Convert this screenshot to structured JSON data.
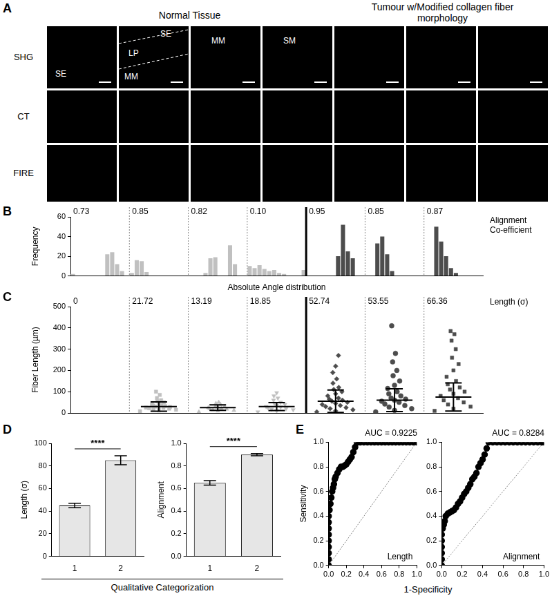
{
  "figure": {
    "panel_a": {
      "panel": "A",
      "headers": [
        "Normal Tissue",
        "Tumour w/Modified collagen fiber morphology"
      ],
      "rows": [
        "SHG",
        "CT",
        "FIRE"
      ],
      "shg_labels": [
        [
          "SE"
        ],
        [
          "SE",
          "LP",
          "MM"
        ],
        [
          "MM"
        ],
        [
          "SM"
        ],
        [],
        [],
        []
      ]
    },
    "panel_d_xlabel": "Qualitative Categorization",
    "panel_e_xlabel": "1-Specificity"
  },
  "chart_data": [
    {
      "panel": "B",
      "type": "bar",
      "ylabel": "Frequency",
      "xlabel": "Absolute Angle distribution",
      "annotation": "Alignment Co-efficient",
      "ylim": [
        0,
        60
      ],
      "yticks": [
        0,
        20,
        40,
        60
      ],
      "tick_labels": "y",
      "grid": false,
      "groups": [
        {
          "label": "0.73",
          "values": [
            2,
            0,
            0,
            0,
            0,
            0,
            0,
            22,
            24,
            12,
            5,
            0
          ],
          "color": "#c0c0c0"
        },
        {
          "label": "0.85",
          "values": [
            3,
            16,
            15,
            4,
            0,
            0,
            0,
            0,
            0,
            0,
            0,
            0
          ],
          "color": "#c0c0c0"
        },
        {
          "label": "0.82",
          "values": [
            0,
            0,
            0,
            3,
            18,
            19,
            0,
            0,
            31,
            12,
            0,
            0
          ],
          "color": "#c0c0c0"
        },
        {
          "label": "0.10",
          "values": [
            10,
            8,
            11,
            7,
            5,
            6,
            3,
            2,
            0,
            0,
            0,
            6
          ],
          "color": "#c0c0c0"
        },
        {
          "label": "0.95",
          "values": [
            0,
            0,
            0,
            0,
            0,
            0,
            20,
            52,
            25,
            18,
            0,
            0
          ],
          "color": "#4d4d4d"
        },
        {
          "label": "0.85",
          "values": [
            0,
            0,
            33,
            40,
            22,
            5,
            0,
            0,
            0,
            0,
            0,
            0
          ],
          "color": "#4d4d4d"
        },
        {
          "label": "0.87",
          "values": [
            0,
            0,
            50,
            35,
            20,
            8,
            3,
            0,
            0,
            0,
            0,
            0
          ],
          "color": "#4d4d4d"
        }
      ]
    },
    {
      "panel": "C",
      "type": "scatter",
      "ylabel": "Fiber Length (µm)",
      "annotation": "Length (σ)",
      "xlim": [
        0.5,
        7.5
      ],
      "ylim": [
        0,
        500
      ],
      "yticks": [
        0,
        100,
        200,
        300,
        400,
        500
      ],
      "tick_labels": "y",
      "grid": false,
      "groups": [
        {
          "x": 1,
          "values": [],
          "mean": null,
          "sd": 0,
          "color": "#c0c0c0",
          "marker": "circle"
        },
        {
          "x": 2,
          "values": [
            8,
            12,
            15,
            18,
            20,
            22,
            24,
            25,
            27,
            28,
            30,
            32,
            35,
            38,
            40,
            45,
            50,
            55,
            60,
            70,
            85,
            100
          ],
          "mean": 30,
          "sd": 21.72,
          "color": "#c0c0c0",
          "marker": "square"
        },
        {
          "x": 3,
          "values": [
            5,
            10,
            12,
            15,
            18,
            20,
            22,
            25,
            28,
            30,
            35,
            40,
            45,
            50
          ],
          "mean": 25,
          "sd": 13.19,
          "color": "#c0c0c0",
          "marker": "triangle"
        },
        {
          "x": 4,
          "values": [
            5,
            10,
            15,
            18,
            20,
            24,
            28,
            30,
            35,
            40,
            45,
            50,
            60,
            70,
            80,
            95
          ],
          "mean": 30,
          "sd": 18.85,
          "color": "#c0c0c0",
          "marker": "triangle-down"
        },
        {
          "x": 5,
          "values": [
            5,
            10,
            15,
            20,
            25,
            30,
            35,
            40,
            45,
            50,
            55,
            60,
            65,
            70,
            80,
            90,
            100,
            110,
            120,
            140,
            160,
            190,
            220,
            270
          ],
          "mean": 55,
          "sd": 52.74,
          "color": "#4d4d4d",
          "marker": "diamond"
        },
        {
          "x": 6,
          "values": [
            5,
            12,
            20,
            28,
            35,
            42,
            50,
            55,
            60,
            65,
            70,
            80,
            90,
            100,
            115,
            130,
            150,
            175,
            200,
            240,
            280,
            410
          ],
          "mean": 60,
          "sd": 53.55,
          "color": "#4d4d4d",
          "marker": "circle"
        },
        {
          "x": 7,
          "values": [
            10,
            20,
            30,
            40,
            50,
            60,
            70,
            80,
            90,
            100,
            110,
            120,
            135,
            150,
            170,
            200,
            230,
            260,
            300,
            340,
            370,
            385
          ],
          "mean": 75,
          "sd": 66.36,
          "color": "#4d4d4d",
          "marker": "square"
        }
      ]
    },
    {
      "panel": "D",
      "type": "bar",
      "categories": [
        "1",
        "2"
      ],
      "values": [
        45,
        85
      ],
      "errors": [
        2,
        4
      ],
      "ylabel": "Length (σ)",
      "ylim": [
        0,
        100
      ],
      "yticks": [
        0,
        20,
        40,
        60,
        80,
        100
      ],
      "color": "#e6e6e6",
      "annotation": "****",
      "grid": false
    },
    {
      "type": "bar",
      "categories": [
        "1",
        "2"
      ],
      "values": [
        0.65,
        0.9
      ],
      "errors": [
        0.02,
        0.01
      ],
      "ylabel": "Alignment",
      "ylim": [
        0,
        1
      ],
      "yticks": [
        {
          "value": 0,
          "label": "0.0"
        },
        0.2,
        0.4,
        0.6,
        0.8,
        {
          "value": 1,
          "label": "1.0"
        }
      ],
      "color": "#e6e6e6",
      "annotation": "****",
      "grid": false
    },
    {
      "panel": "E",
      "type": "line",
      "title": "AUC = 0.9225",
      "annotation": "Length",
      "ylabel": "Sensitivity",
      "x": [
        0,
        0,
        0,
        0,
        0,
        0,
        0,
        0,
        0,
        0.01,
        0.02,
        0.03,
        0.04,
        0.05,
        0.06,
        0.07,
        0.08,
        0.1,
        0.12,
        0.14,
        0.16,
        0.18,
        0.2,
        0.22,
        0.24,
        0.26,
        0.28,
        0.3,
        0.32,
        0.34,
        0.36,
        0.4,
        0.44,
        0.48,
        0.52,
        0.56,
        0.6,
        0.64,
        0.68,
        0.72,
        0.76,
        0.8,
        0.84,
        0.88,
        0.92,
        0.96,
        1.0
      ],
      "values": [
        0,
        0.05,
        0.1,
        0.15,
        0.2,
        0.25,
        0.3,
        0.35,
        0.4,
        0.45,
        0.5,
        0.55,
        0.6,
        0.63,
        0.66,
        0.7,
        0.72,
        0.75,
        0.78,
        0.8,
        0.8,
        0.81,
        0.82,
        0.84,
        0.86,
        0.88,
        0.92,
        0.96,
        1.0,
        1,
        1,
        1,
        1,
        1,
        1,
        1,
        1,
        1,
        1,
        1,
        1,
        1,
        1,
        1,
        1,
        1,
        1
      ],
      "xlim": [
        0,
        1
      ],
      "ylim": [
        0,
        1
      ],
      "xticks": [
        {
          "value": 0,
          "label": "0.0"
        },
        0.2,
        0.4,
        0.6,
        0.8,
        {
          "value": 1,
          "label": "1.0"
        }
      ],
      "yticks": [
        {
          "value": 0,
          "label": "0.0"
        },
        0.2,
        0.4,
        0.6,
        0.8,
        {
          "value": 1,
          "label": "1.0"
        }
      ],
      "color": "#000000",
      "marker": "circle",
      "grid": false
    },
    {
      "type": "line",
      "title": "AUC = 0.8284",
      "annotation": "Alignment",
      "x": [
        0,
        0,
        0,
        0,
        0,
        0,
        0.01,
        0.02,
        0.03,
        0.04,
        0.06,
        0.08,
        0.1,
        0.12,
        0.14,
        0.16,
        0.18,
        0.2,
        0.22,
        0.24,
        0.26,
        0.28,
        0.3,
        0.32,
        0.34,
        0.36,
        0.38,
        0.4,
        0.42,
        0.44,
        0.46,
        0.5,
        0.54,
        0.58,
        0.62,
        0.66,
        0.7,
        0.74,
        0.78,
        0.82,
        0.86,
        0.9,
        0.94,
        0.98,
        1.0
      ],
      "values": [
        0,
        0.05,
        0.1,
        0.15,
        0.2,
        0.25,
        0.3,
        0.33,
        0.36,
        0.4,
        0.42,
        0.43,
        0.44,
        0.45,
        0.47,
        0.5,
        0.52,
        0.55,
        0.58,
        0.6,
        0.63,
        0.66,
        0.7,
        0.72,
        0.75,
        0.8,
        0.83,
        0.86,
        0.9,
        0.95,
        1.0,
        1,
        1,
        1,
        1,
        1,
        1,
        1,
        1,
        1,
        1,
        1,
        1,
        1,
        1
      ],
      "xlim": [
        0,
        1
      ],
      "ylim": [
        0,
        1
      ],
      "xticks": [
        {
          "value": 0,
          "label": "0.0"
        },
        0.2,
        0.4,
        0.6,
        0.8,
        {
          "value": 1,
          "label": "1.0"
        }
      ],
      "yticks": [
        {
          "value": 0,
          "label": "0.0"
        },
        0.2,
        0.4,
        0.6,
        0.8,
        {
          "value": 1,
          "label": "1.0"
        }
      ],
      "color": "#000000",
      "marker": "circle",
      "grid": false
    }
  ]
}
